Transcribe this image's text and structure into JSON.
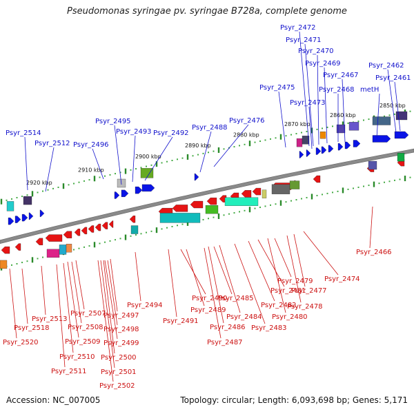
{
  "title": "Pseudomonas syringae pv. syringae B728a, complete genome",
  "accession": "Accession: NC_007005",
  "summary": "Topology: circular; Length: 6,093,698 bp; Genes: 5,171",
  "colors": {
    "forward_gene": "#0a14e6",
    "reverse_gene": "#e61414",
    "forward_label": "#1111cc",
    "reverse_label": "#cc1111",
    "backbone": "#8a8a8a",
    "tick_mark": "#2a8a2a",
    "tick_dot": "#44aa44"
  },
  "scale_ticks": [
    "2920 kbp",
    "2910 kbp",
    "2900 kbp",
    "2890 kbp",
    "2880 kbp",
    "2870 kbp",
    "2860 kbp",
    "2850 kbp"
  ],
  "forward_labels": [
    "Psyr_2514",
    "Psyr_2512",
    "Psyr_2496",
    "Psyr_2495",
    "Psyr_2493",
    "Psyr_2492",
    "Psyr_2488",
    "Psyr_2476",
    "Psyr_2475",
    "Psyr_2473",
    "Psyr_2472",
    "Psyr_2471",
    "Psyr_2470",
    "Psyr_2469",
    "Psyr_2468",
    "Psyr_2467",
    "metH",
    "Psyr_2462",
    "Psyr_2461"
  ],
  "reverse_labels": [
    "Psyr_2520",
    "Psyr_2518",
    "Psyr_2513",
    "Psyr_2511",
    "Psyr_2510",
    "Psyr_2509",
    "Psyr_2508",
    "Psyr_2507",
    "Psyr_2502",
    "Psyr_2501",
    "Psyr_2500",
    "Psyr_2499",
    "Psyr_2498",
    "Psyr_2497",
    "Psyr_2494",
    "Psyr_2491",
    "Psyr_2490",
    "Psyr_2489",
    "Psyr_2487",
    "Psyr_2486",
    "Psyr_2485",
    "Psyr_2484",
    "Psyr_2483",
    "Psyr_2482",
    "Psyr_2481",
    "Psyr_2480",
    "Psyr_2479",
    "Psyr_2478",
    "Psyr_2477",
    "Psyr_2474",
    "Psyr_2466"
  ]
}
